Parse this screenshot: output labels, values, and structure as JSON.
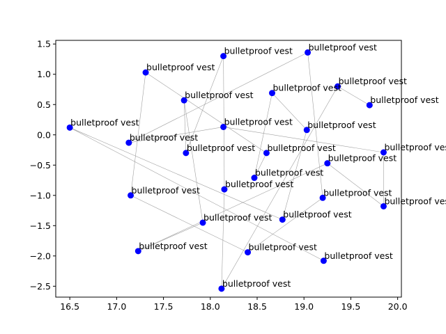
{
  "chart_data": {
    "type": "scatter",
    "title": "",
    "xlabel": "",
    "ylabel": "",
    "xlim": [
      16.35,
      20.04
    ],
    "ylim": [
      -2.68,
      1.56
    ],
    "xticks": [
      16.5,
      17.0,
      17.5,
      18.0,
      18.5,
      19.0,
      19.5,
      20.0
    ],
    "xtick_labels": [
      "16.5",
      "17.0",
      "17.5",
      "18.0",
      "18.5",
      "19.0",
      "19.5",
      "20.0"
    ],
    "yticks": [
      -2.5,
      -2.0,
      -1.5,
      -1.0,
      -0.5,
      0.0,
      0.5,
      1.0,
      1.5
    ],
    "ytick_labels": [
      "−2.5",
      "−2.0",
      "−1.5",
      "−1.0",
      "−0.5",
      "0.0",
      "0.5",
      "1.0",
      "1.5"
    ],
    "grid": false,
    "point_color": "#0000ff",
    "line_color": "#a0a0a0",
    "points": [
      {
        "x": 16.5,
        "y": 0.12,
        "label": "bulletproof vest"
      },
      {
        "x": 19.04,
        "y": 1.36,
        "label": "bulletproof vest"
      },
      {
        "x": 18.14,
        "y": 1.3,
        "label": "bulletproof vest"
      },
      {
        "x": 17.31,
        "y": 1.03,
        "label": "bulletproof vest"
      },
      {
        "x": 19.36,
        "y": 0.8,
        "label": "bulletproof vest"
      },
      {
        "x": 18.66,
        "y": 0.69,
        "label": "bulletproof vest"
      },
      {
        "x": 17.72,
        "y": 0.57,
        "label": "bulletproof vest"
      },
      {
        "x": 19.7,
        "y": 0.49,
        "label": "bulletproof vest"
      },
      {
        "x": 18.14,
        "y": 0.13,
        "label": "bulletproof vest"
      },
      {
        "x": 19.03,
        "y": 0.08,
        "label": "bulletproof vest"
      },
      {
        "x": 17.13,
        "y": -0.13,
        "label": "bulletproof vest"
      },
      {
        "x": 17.74,
        "y": -0.3,
        "label": "bulletproof vest"
      },
      {
        "x": 18.6,
        "y": -0.3,
        "label": "bulletproof vest"
      },
      {
        "x": 19.85,
        "y": -0.29,
        "label": "bulletproof vest"
      },
      {
        "x": 19.25,
        "y": -0.47,
        "label": "bulletproof vest"
      },
      {
        "x": 18.47,
        "y": -0.71,
        "label": "bulletproof vest"
      },
      {
        "x": 18.15,
        "y": -0.9,
        "label": "bulletproof vest"
      },
      {
        "x": 17.15,
        "y": -1.0,
        "label": "bulletproof vest"
      },
      {
        "x": 19.2,
        "y": -1.04,
        "label": "bulletproof vest"
      },
      {
        "x": 19.85,
        "y": -1.18,
        "label": "bulletproof vest"
      },
      {
        "x": 18.77,
        "y": -1.4,
        "label": "bulletproof vest"
      },
      {
        "x": 17.92,
        "y": -1.45,
        "label": "bulletproof vest"
      },
      {
        "x": 17.23,
        "y": -1.92,
        "label": "bulletproof vest"
      },
      {
        "x": 18.4,
        "y": -1.94,
        "label": "bulletproof vest"
      },
      {
        "x": 19.21,
        "y": -2.08,
        "label": "bulletproof vest"
      },
      {
        "x": 18.12,
        "y": -2.54,
        "label": "bulletproof vest"
      }
    ],
    "path_order": [
      24,
      0,
      20,
      9,
      5,
      15,
      12,
      3,
      17,
      23,
      18,
      1,
      10,
      8,
      13,
      19,
      14,
      22,
      21,
      6,
      11,
      2,
      16,
      25,
      4,
      7
    ]
  }
}
